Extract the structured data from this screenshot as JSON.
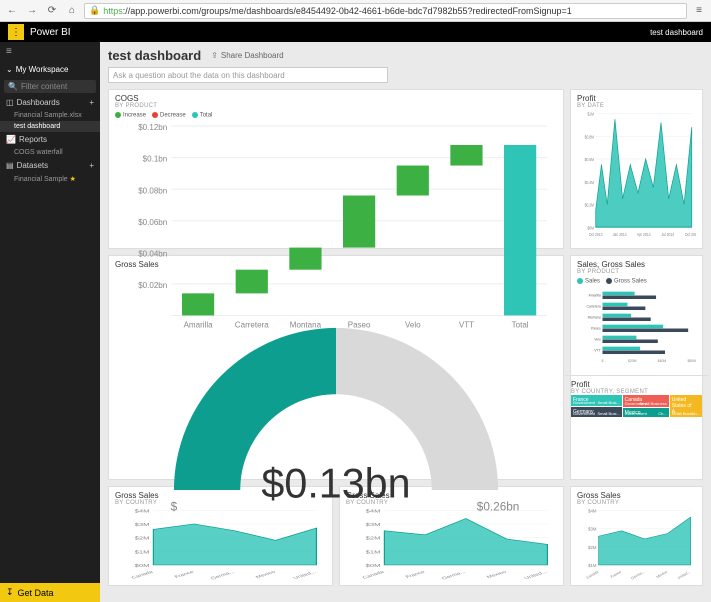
{
  "browser": {
    "url_prefix": "https",
    "url_rest": "://app.powerbi.com/groups/me/dashboards/e8454492-0b42-4661-b6de-bdc7d7982b55?redirectedFromSignup=1"
  },
  "topbar": {
    "app_name": "Power BI",
    "right_label": "test dashboard"
  },
  "sidebar": {
    "workspace": "My Workspace",
    "filter_placeholder": "Filter content",
    "dashboards_label": "Dashboards",
    "dashboards": [
      "Financial Sample.xlsx",
      "test dashboard"
    ],
    "reports_label": "Reports",
    "reports": [
      "COGS waterfall"
    ],
    "datasets_label": "Datasets",
    "datasets": [
      "Financial Sample"
    ],
    "get_data": "Get Data"
  },
  "header": {
    "title": "test dashboard",
    "share": "Share Dashboard",
    "ask_placeholder": "Ask a question about the data on this dashboard"
  },
  "colors": {
    "teal": "#2ec4b6",
    "teal_dark": "#0e9e90",
    "green": "#3cb043",
    "red": "#e74430",
    "navy": "#3b4a5a",
    "coral": "#ef5f56",
    "gold": "#f4b820",
    "grey": "#d9d9d9",
    "axis": "#888"
  },
  "cogs": {
    "title": "COGS",
    "sub": "BY PRODUCT",
    "legend": [
      {
        "name": "Increase",
        "color": "#3cb043"
      },
      {
        "name": "Decrease",
        "color": "#e74430"
      },
      {
        "name": "Total",
        "color": "#2ec4b6"
      }
    ],
    "ylabels": [
      "$0.12bn",
      "$0.1bn",
      "$0.08bn",
      "$0.06bn",
      "$0.04bn",
      "$0.02bn",
      ""
    ],
    "ylim": [
      0,
      0.12
    ],
    "categories": [
      "Amarilla",
      "Carretera",
      "Montana",
      "Paseo",
      "Velo",
      "VTT",
      "Total"
    ],
    "bars": [
      {
        "start": 0,
        "end": 0.014,
        "color": "#3cb043"
      },
      {
        "start": 0.014,
        "end": 0.029,
        "color": "#3cb043"
      },
      {
        "start": 0.029,
        "end": 0.043,
        "color": "#3cb043"
      },
      {
        "start": 0.043,
        "end": 0.076,
        "color": "#3cb043"
      },
      {
        "start": 0.076,
        "end": 0.095,
        "color": "#3cb043"
      },
      {
        "start": 0.095,
        "end": 0.108,
        "color": "#3cb043"
      },
      {
        "start": 0,
        "end": 0.108,
        "color": "#2ec4b6"
      }
    ]
  },
  "profit_date": {
    "title": "Profit",
    "sub": "BY DATE",
    "ylabels": [
      "$1M",
      "$0.8M",
      "$0.6M",
      "$0.4M",
      "$0.2M",
      "$0M"
    ],
    "xlim": [
      0,
      100
    ],
    "ylim": [
      0,
      1
    ],
    "xlabels": [
      "Oct 2013",
      "Jan 2014",
      "Apr 2014",
      "Jul 2014",
      "Oct 2014"
    ],
    "color": "#2ec4b6",
    "points": [
      [
        0,
        0.15
      ],
      [
        6,
        0.55
      ],
      [
        12,
        0.2
      ],
      [
        20,
        0.95
      ],
      [
        28,
        0.25
      ],
      [
        36,
        0.55
      ],
      [
        44,
        0.3
      ],
      [
        52,
        0.6
      ],
      [
        60,
        0.35
      ],
      [
        68,
        0.92
      ],
      [
        76,
        0.25
      ],
      [
        84,
        0.55
      ],
      [
        92,
        0.2
      ],
      [
        100,
        0.88
      ]
    ]
  },
  "gross_gauge": {
    "title": "Gross Sales",
    "value_label": "$0.13bn",
    "min_label": "$",
    "max_label": "$0.26bn",
    "fraction": 0.5,
    "fill": "#0e9e90",
    "empty": "#d9d9d9"
  },
  "sales_bars": {
    "title": "Sales, Gross Sales",
    "sub": "BY PRODUCT",
    "legend": [
      {
        "name": "Sales",
        "color": "#2ec4b6"
      },
      {
        "name": "Gross Sales",
        "color": "#3b4a5a"
      }
    ],
    "categories": [
      "Amarilla",
      "Carretera",
      "Montana",
      "Paseo",
      "Velo",
      "VTT"
    ],
    "xmax": 50,
    "xlabels": [
      "$",
      "$20M",
      "$40M",
      "$50M"
    ],
    "rows": [
      {
        "sales": 18,
        "gross": 30
      },
      {
        "sales": 14,
        "gross": 24
      },
      {
        "sales": 16,
        "gross": 27
      },
      {
        "sales": 34,
        "gross": 48
      },
      {
        "sales": 19,
        "gross": 31
      },
      {
        "sales": 21,
        "gross": 35
      }
    ],
    "c_sales": "#2ec4b6",
    "c_gross": "#3b4a5a"
  },
  "treemap": {
    "title": "Profit",
    "sub": "BY COUNTRY, SEGMENT",
    "boxes": {
      "france": {
        "label": "France",
        "color": "#2ec4b6",
        "subs": [
          "Government",
          "Small Busi..."
        ]
      },
      "germany": {
        "label": "Germany",
        "color": "#3b4a5a",
        "subs": [
          "Government",
          "Small Busi..."
        ]
      },
      "canada": {
        "label": "Canada",
        "color": "#ef5f56",
        "subs": [
          "Government",
          "Small Business",
          "Channe..."
        ]
      },
      "mexico": {
        "label": "Mexico",
        "color": "#0e9e90",
        "subs": [
          "Government",
          "Ch..."
        ]
      },
      "usa": {
        "label": "United States of A...",
        "color": "#f4b820",
        "subs": [
          "Small Busin...",
          "Ch..."
        ]
      }
    }
  },
  "mini": {
    "title": "Gross Sales",
    "sub": "BY COUNTRY",
    "ylabels": [
      "$4M",
      "$3M",
      "$2M",
      "$1M",
      "$0M"
    ],
    "ylabels2": [
      "$4M",
      "$3M",
      "$2M",
      "$1M"
    ],
    "categories": [
      "Canada",
      "France",
      "Germa...",
      "Mexico",
      "United..."
    ],
    "color": "#2ec4b6",
    "series": [
      [
        [
          0,
          2.6
        ],
        [
          25,
          3.0
        ],
        [
          50,
          2.5
        ],
        [
          75,
          1.8
        ],
        [
          100,
          2.7
        ]
      ],
      [
        [
          0,
          2.5
        ],
        [
          25,
          2.2
        ],
        [
          50,
          3.4
        ],
        [
          75,
          1.9
        ],
        [
          100,
          1.5
        ]
      ],
      [
        [
          0,
          2.1
        ],
        [
          25,
          2.5
        ],
        [
          50,
          1.9
        ],
        [
          75,
          2.3
        ],
        [
          100,
          3.5
        ]
      ]
    ]
  }
}
